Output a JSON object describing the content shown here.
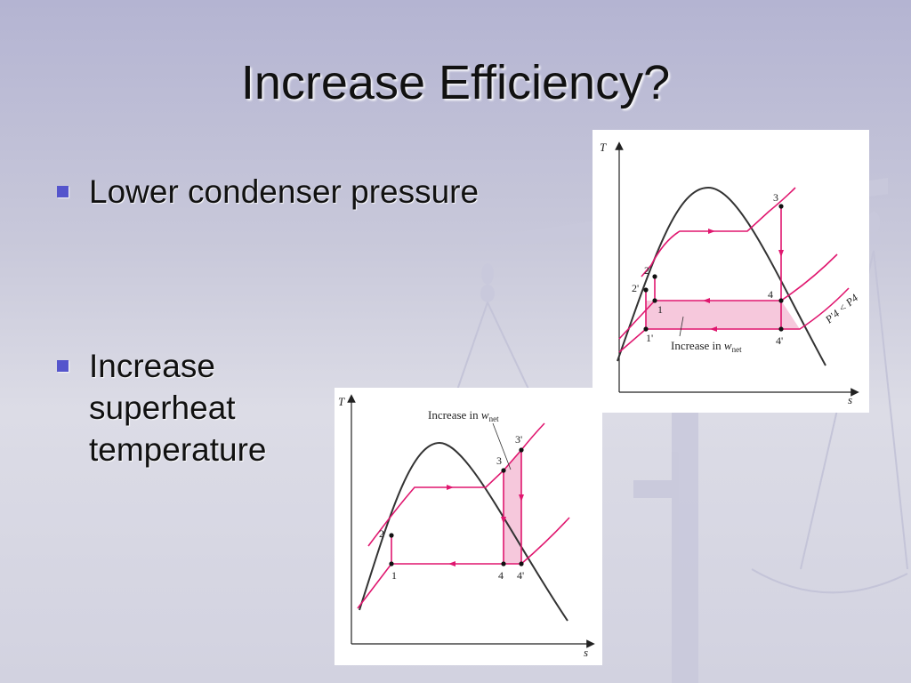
{
  "slide": {
    "title": "Increase Efficiency?",
    "bullets": [
      "Lower condenser pressure",
      "Increase superheat\ntemperature"
    ]
  },
  "colors": {
    "bullet": "#5555cc",
    "cycle": "#e0176f",
    "dome": "#333333",
    "fill": "#f6c8dc"
  },
  "icons": [
    "bullet-square-icon"
  ],
  "diagram_a": {
    "axis_y": "T",
    "axis_x": "s",
    "points": {
      "p2": "2",
      "p2p": "2'",
      "p1": "1",
      "p1p": "1'",
      "p3": "3",
      "p4": "4",
      "p4p": "4'"
    },
    "annotation": "Increase in ",
    "annotation_w": "w",
    "annotation_sub": "net",
    "pressure_label": "P'4 < P4"
  },
  "diagram_b": {
    "axis_y": "T",
    "axis_x": "s",
    "points": {
      "p1": "1",
      "p2": "2",
      "p3": "3",
      "p3p": "3'",
      "p4": "4",
      "p4p": "4'"
    },
    "annotation": "Increase in ",
    "annotation_w": "w",
    "annotation_sub": "net"
  }
}
